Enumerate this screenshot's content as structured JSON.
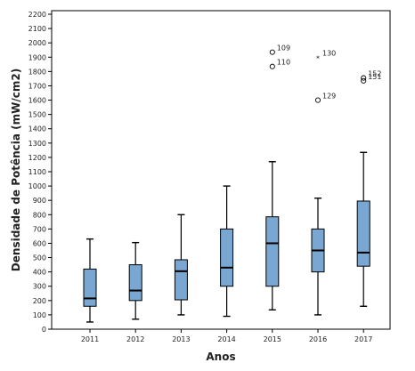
{
  "chart_data": {
    "type": "box",
    "title": "",
    "xlabel": "Anos",
    "ylabel": "Densidade de Potência (mW/cm2)",
    "ylim": [
      0,
      2200
    ],
    "y_ticks": [
      0,
      100,
      200,
      300,
      400,
      500,
      600,
      700,
      800,
      900,
      1000,
      1100,
      1200,
      1300,
      1400,
      1500,
      1600,
      1700,
      1800,
      1900,
      2000,
      2100,
      2200
    ],
    "y_tick_labels": [
      "0",
      "100",
      "200",
      "300",
      "400",
      "500",
      "600",
      "700",
      "800",
      "900",
      "1000",
      "1100",
      "1200",
      "1300",
      "1400",
      "1500",
      "1600",
      "1700",
      "1800",
      "1900",
      "2000",
      "2100",
      "2200"
    ],
    "categories": [
      "2011",
      "2012",
      "2013",
      "2014",
      "2015",
      "2016",
      "2017"
    ],
    "boxes": [
      {
        "category": "2011",
        "min": 50,
        "q1": 160,
        "median": 215,
        "q3": 420,
        "max": 630
      },
      {
        "category": "2012",
        "min": 70,
        "q1": 200,
        "median": 270,
        "q3": 450,
        "max": 605
      },
      {
        "category": "2013",
        "min": 100,
        "q1": 205,
        "median": 405,
        "q3": 485,
        "max": 800
      },
      {
        "category": "2014",
        "min": 90,
        "q1": 300,
        "median": 430,
        "q3": 700,
        "max": 1000
      },
      {
        "category": "2015",
        "min": 135,
        "q1": 300,
        "median": 600,
        "q3": 785,
        "max": 1170
      },
      {
        "category": "2016",
        "min": 100,
        "q1": 400,
        "median": 550,
        "q3": 700,
        "max": 915
      },
      {
        "category": "2017",
        "min": 160,
        "q1": 440,
        "median": 535,
        "q3": 895,
        "max": 1235
      }
    ],
    "outliers": [
      {
        "category": "2015",
        "value": 1935,
        "label": "109",
        "symbol": "circle"
      },
      {
        "category": "2015",
        "value": 1835,
        "label": "110",
        "symbol": "circle"
      },
      {
        "category": "2016",
        "value": 1900,
        "label": "130",
        "symbol": "star"
      },
      {
        "category": "2016",
        "value": 1600,
        "label": "129",
        "symbol": "circle"
      },
      {
        "category": "2017",
        "value": 1755,
        "label": "152",
        "symbol": "circle"
      },
      {
        "category": "2017",
        "value": 1735,
        "label": "151",
        "symbol": "circle"
      }
    ],
    "colors": {
      "box_fill": "#7aa7d2",
      "box_stroke": "#000000",
      "axis": "#000000"
    },
    "grid": false,
    "legend": "none"
  }
}
